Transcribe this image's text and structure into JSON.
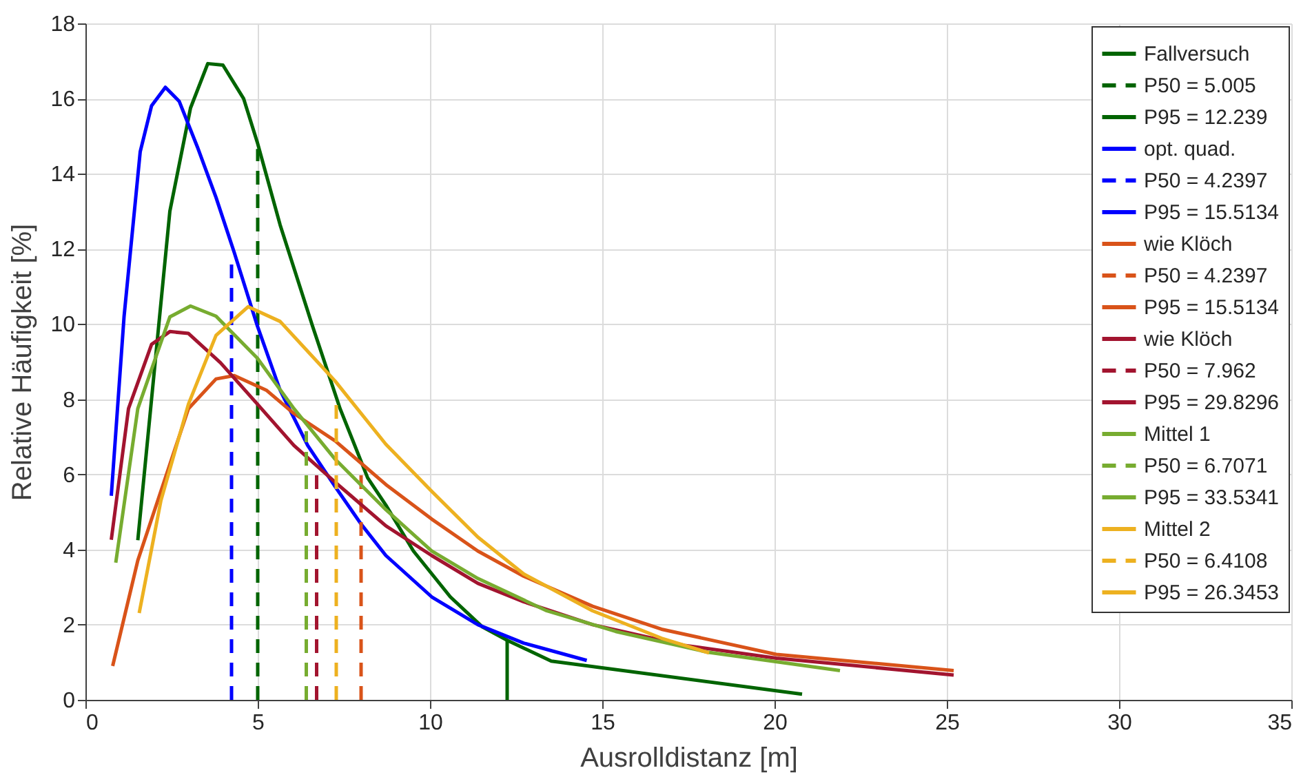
{
  "chart_data": {
    "type": "line",
    "xlabel": "Ausrolldistanz [m]",
    "ylabel": "Relative Häufigkeit [%]",
    "xlim": [
      0,
      35
    ],
    "xticks": [
      0,
      5,
      10,
      15,
      20,
      25,
      30,
      35
    ],
    "ylim": [
      0,
      18
    ],
    "yticks": [
      0,
      2,
      4,
      6,
      8,
      10,
      12,
      14,
      16,
      18
    ],
    "grid": true,
    "legend": "top right",
    "series": [
      {
        "name": "Fallversuch",
        "color": "#006400",
        "line_style": "solid",
        "x": [
          1.52,
          2.45,
          3.05,
          3.55,
          3.99,
          4.59,
          4.99,
          5.65,
          6.59,
          7.39,
          8.19,
          8.72,
          9.52,
          10.59,
          11.52,
          12.25,
          13.52,
          20.8
        ],
        "values": [
          4.25,
          13.0,
          15.75,
          16.93,
          16.89,
          16.0,
          14.83,
          12.64,
          9.95,
          7.75,
          5.91,
          5.18,
          3.96,
          2.74,
          1.94,
          1.58,
          1.03,
          0.15
        ]
      },
      {
        "name": "P50 = 5.005",
        "color": "#006400",
        "line_style": "dashed",
        "x": [
          5.0,
          5.0
        ],
        "values": [
          0,
          14.66
        ]
      },
      {
        "name": "P95 = 12.239",
        "color": "#006400",
        "line_style": "solid",
        "x": [
          12.24,
          12.24
        ],
        "values": [
          0,
          1.58
        ]
      },
      {
        "name": "opt. quad.",
        "color": "#0000ff",
        "line_style": "solid",
        "x": [
          0.75,
          1.12,
          1.59,
          1.92,
          2.32,
          2.72,
          3.25,
          3.79,
          4.32,
          4.99,
          5.65,
          6.45,
          7.25,
          7.99,
          8.72,
          10.05,
          11.39,
          12.72,
          14.55
        ],
        "values": [
          5.43,
          10.19,
          14.59,
          15.81,
          16.3,
          15.93,
          14.71,
          13.37,
          11.9,
          9.95,
          8.24,
          6.77,
          5.67,
          4.69,
          3.84,
          2.74,
          2.0,
          1.51,
          1.05
        ]
      },
      {
        "name": "P50 = 4.2397",
        "color": "#0000ff",
        "line_style": "dashed",
        "x": [
          4.24,
          4.24
        ],
        "values": [
          0,
          11.84
        ]
      },
      {
        "name": "P95 = 15.5134",
        "color": "#0000ff",
        "line_style": "solid"
      },
      {
        "name": "wie Klöch",
        "color": "#d95319",
        "line_style": "solid",
        "x": [
          0.79,
          1.52,
          2.32,
          2.99,
          3.79,
          4.32,
          5.25,
          6.05,
          7.25,
          8.72,
          10.05,
          11.39,
          12.72,
          14.72,
          16.72,
          20.05,
          25.2
        ],
        "values": [
          0.9,
          3.71,
          5.91,
          7.75,
          8.54,
          8.63,
          8.24,
          7.62,
          6.89,
          5.73,
          4.81,
          3.96,
          3.29,
          2.49,
          1.88,
          1.21,
          0.78
        ]
      },
      {
        "name": "P50 = 4.2397",
        "color": "#d95319",
        "line_style": "dashed",
        "x": [
          8.0,
          8.0
        ],
        "values": [
          0,
          6.23
        ]
      },
      {
        "name": "P95 = 15.5134",
        "color": "#d95319",
        "line_style": "solid"
      },
      {
        "name": "wie Klöch",
        "color": "#a2142f",
        "line_style": "solid",
        "x": [
          0.75,
          1.25,
          1.92,
          2.45,
          2.99,
          3.92,
          4.99,
          6.05,
          7.25,
          8.72,
          10.05,
          11.39,
          12.72,
          14.72,
          17.39,
          20.05,
          25.2
        ],
        "values": [
          4.26,
          7.75,
          9.46,
          9.8,
          9.75,
          8.97,
          7.87,
          6.77,
          5.79,
          4.63,
          3.84,
          3.1,
          2.61,
          2.0,
          1.45,
          1.11,
          0.66
        ]
      },
      {
        "name": "P50 = 7.962",
        "color": "#a2142f",
        "line_style": "dashed",
        "x": [
          6.71,
          6.71
        ],
        "values": [
          0,
          6.08
        ]
      },
      {
        "name": "P95 = 29.8296",
        "color": "#a2142f",
        "line_style": "solid"
      },
      {
        "name": "Mittel 1",
        "color": "#77ac30",
        "line_style": "solid",
        "x": [
          0.88,
          1.52,
          2.45,
          3.05,
          3.79,
          4.99,
          6.05,
          7.25,
          8.72,
          10.05,
          11.39,
          13.39,
          15.39,
          18.05,
          21.9
        ],
        "values": [
          3.65,
          7.75,
          10.19,
          10.48,
          10.21,
          9.09,
          7.75,
          6.4,
          5.06,
          3.96,
          3.23,
          2.37,
          1.82,
          1.27,
          0.78
        ]
      },
      {
        "name": "P50 = 6.7071",
        "color": "#77ac30",
        "line_style": "dashed",
        "x": [
          6.41,
          6.41
        ],
        "values": [
          0,
          7.15
        ]
      },
      {
        "name": "P95 = 33.5341",
        "color": "#77ac30",
        "line_style": "solid"
      },
      {
        "name": "Mittel 2",
        "color": "#edb120",
        "line_style": "solid",
        "x": [
          1.56,
          2.19,
          2.99,
          3.79,
          4.72,
          5.65,
          7.25,
          8.72,
          10.05,
          11.39,
          12.72,
          14.72,
          16.72,
          18.1
        ],
        "values": [
          2.31,
          5.3,
          7.87,
          9.7,
          10.46,
          10.07,
          8.48,
          6.8,
          5.55,
          4.33,
          3.35,
          2.37,
          1.64,
          1.25
        ]
      },
      {
        "name": "P50 = 6.4108",
        "color": "#edb120",
        "line_style": "dashed",
        "x": [
          7.28,
          7.28
        ],
        "values": [
          0,
          8.06
        ]
      },
      {
        "name": "P95 = 26.3453",
        "color": "#edb120",
        "line_style": "solid"
      }
    ]
  }
}
